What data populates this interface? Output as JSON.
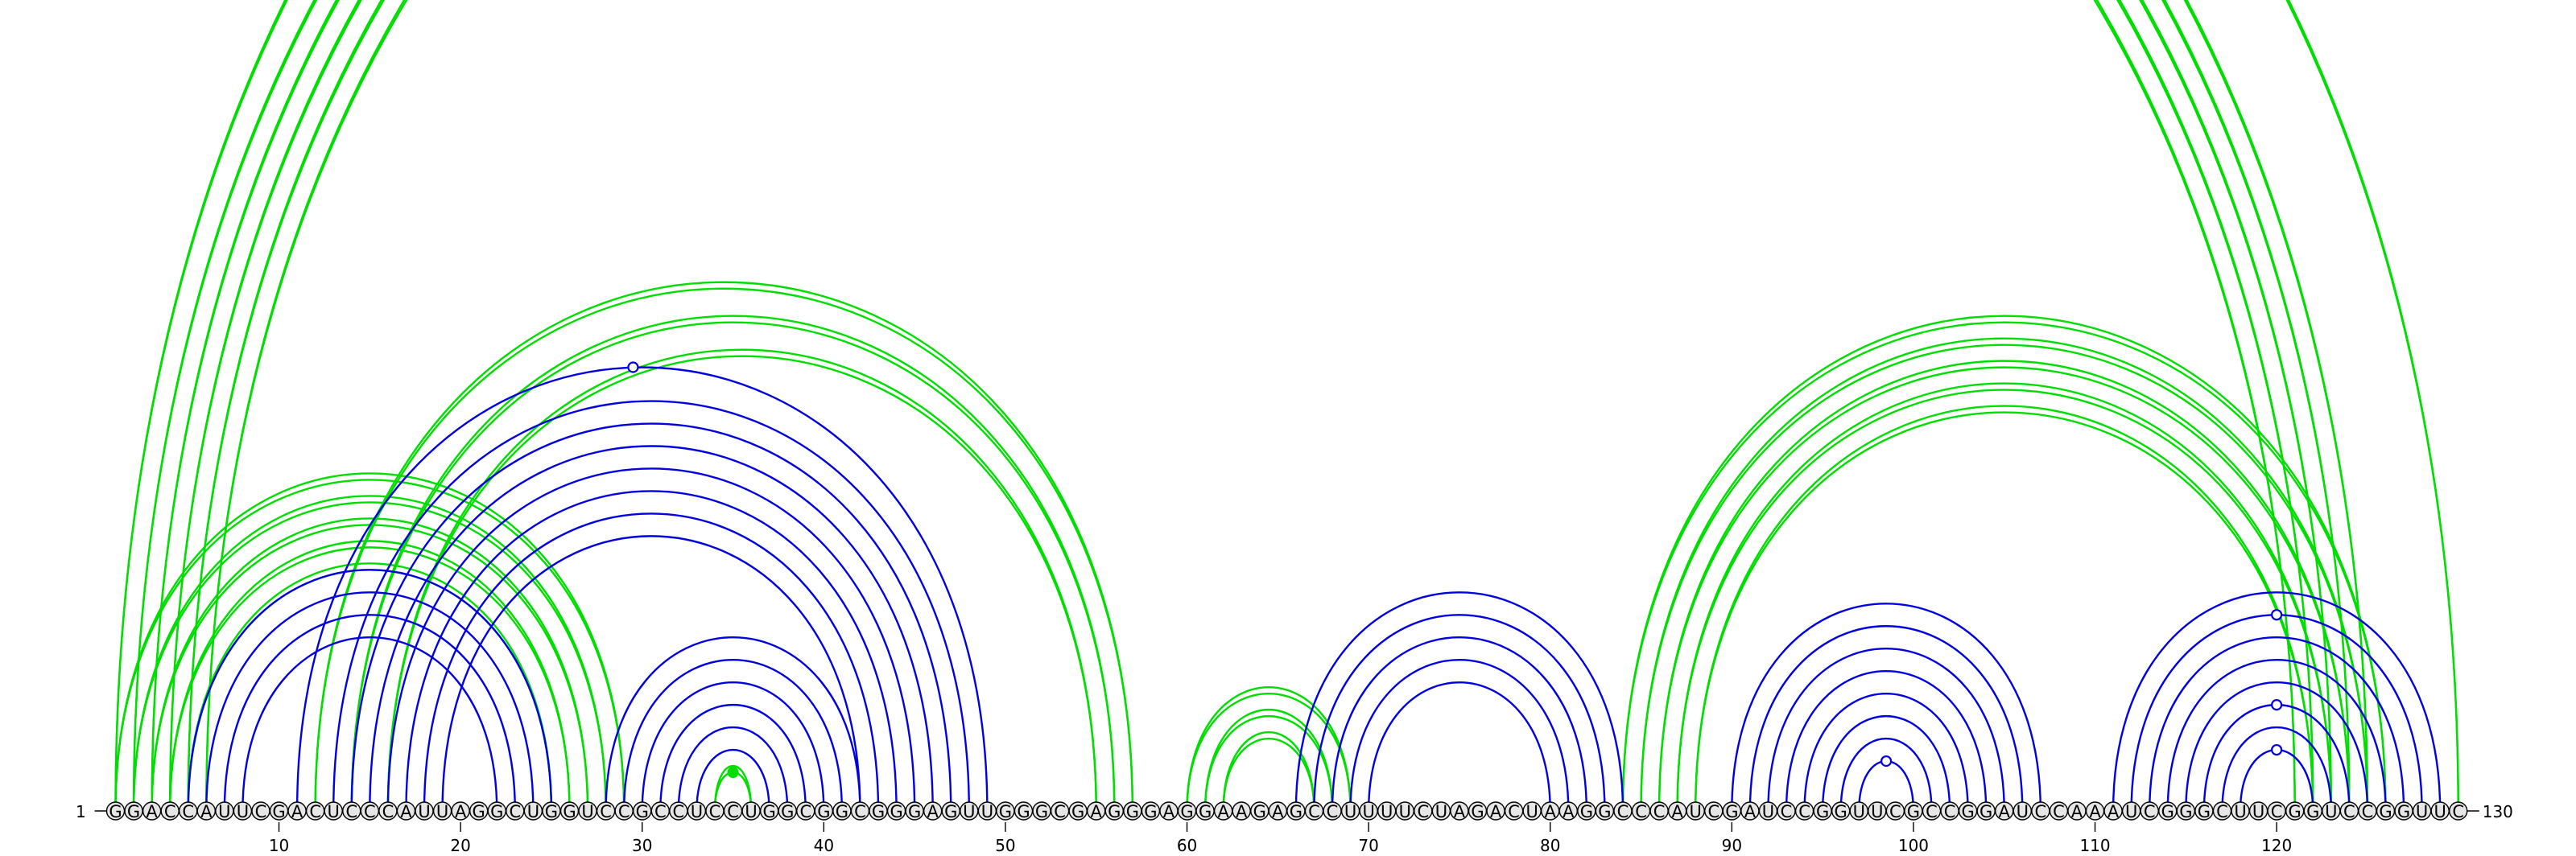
{
  "sequence": "GGACCAUUCGACUCCCAUUAGGCUGGUCCGCCUCCUGGCGGCGGGAGUUGGGCGAGGGAGGAAGAGCCUUUUCUAGACUAAGGCCCAUCGAUCCGGUUCGCCGGAUCCAAAUCGGGCUUCGGUCCGGUUC",
  "labels": {
    "start": "1",
    "end": "130",
    "ticks": [
      "10",
      "20",
      "30",
      "40",
      "50",
      "60",
      "70",
      "80",
      "90",
      "100",
      "110",
      "120"
    ]
  },
  "colors": {
    "green": "#00dd00",
    "blue": "#0000e0",
    "circle_fill": "#e6e6e6"
  },
  "arc_groups": [
    {
      "color": "green",
      "style": "double",
      "pairs": [
        [
          1,
          130
        ],
        [
          2,
          125
        ],
        [
          3,
          124
        ],
        [
          4,
          123
        ],
        [
          5,
          122
        ],
        [
          6,
          121
        ]
      ]
    },
    {
      "color": "green",
      "style": "double",
      "pairs": [
        [
          1,
          29
        ],
        [
          2,
          28
        ],
        [
          3,
          27
        ],
        [
          4,
          26
        ],
        [
          5,
          25
        ]
      ]
    },
    {
      "color": "green",
      "style": "double",
      "pairs": [
        [
          12,
          57
        ],
        [
          14,
          56
        ],
        [
          16,
          55
        ]
      ]
    },
    {
      "color": "green",
      "style": "double",
      "pairs": [
        [
          60,
          69
        ],
        [
          61,
          68
        ],
        [
          62,
          67
        ]
      ]
    },
    {
      "color": "green",
      "style": "double",
      "pairs": [
        [
          84,
          126
        ],
        [
          85,
          125
        ],
        [
          86,
          124
        ],
        [
          87,
          123
        ],
        [
          88,
          122
        ]
      ]
    },
    {
      "color": "green",
      "style": "double",
      "pairs": [
        [
          34,
          36
        ]
      ]
    },
    {
      "color": "blue",
      "style": "single",
      "pairs": [
        [
          5,
          25
        ],
        [
          6,
          24
        ],
        [
          7,
          23
        ],
        [
          8,
          22
        ]
      ]
    },
    {
      "color": "blue",
      "style": "single",
      "pairs": [
        [
          11,
          49
        ],
        [
          13,
          48
        ],
        [
          14,
          47
        ],
        [
          15,
          46
        ],
        [
          16,
          45
        ],
        [
          17,
          44
        ],
        [
          18,
          43
        ],
        [
          19,
          42
        ]
      ]
    },
    {
      "color": "blue",
      "style": "single",
      "pairs": [
        [
          28,
          42
        ],
        [
          29,
          41
        ],
        [
          30,
          40
        ],
        [
          31,
          39
        ],
        [
          32,
          38
        ],
        [
          33,
          37
        ]
      ]
    },
    {
      "color": "blue",
      "style": "single",
      "pairs": [
        [
          66,
          84
        ],
        [
          67,
          83
        ],
        [
          68,
          82
        ],
        [
          69,
          81
        ],
        [
          70,
          80
        ]
      ]
    },
    {
      "color": "blue",
      "style": "single",
      "pairs": [
        [
          90,
          107
        ],
        [
          91,
          106
        ],
        [
          92,
          105
        ],
        [
          93,
          104
        ],
        [
          94,
          103
        ],
        [
          95,
          102
        ],
        [
          96,
          101
        ],
        [
          97,
          100
        ]
      ]
    },
    {
      "color": "blue",
      "style": "single",
      "pairs": [
        [
          111,
          129
        ],
        [
          112,
          128
        ],
        [
          113,
          127
        ],
        [
          114,
          126
        ],
        [
          115,
          125
        ],
        [
          116,
          124
        ],
        [
          117,
          123
        ],
        [
          118,
          122
        ]
      ]
    }
  ],
  "markers": [
    {
      "pos": 29.5,
      "pair_span": 38,
      "color": "blue",
      "filled": false
    },
    {
      "pos": 35,
      "pair_span": 2,
      "color": "green",
      "filled": true
    },
    {
      "pos": 98.5,
      "pair_span": 3,
      "color": "blue",
      "filled": false
    },
    {
      "pos": 120,
      "pair_span": 4,
      "color": "blue",
      "filled": false
    },
    {
      "pos": 120,
      "pair_span": 8,
      "color": "blue",
      "filled": false
    },
    {
      "pos": 120,
      "pair_span": 16,
      "color": "blue",
      "filled": false
    }
  ]
}
